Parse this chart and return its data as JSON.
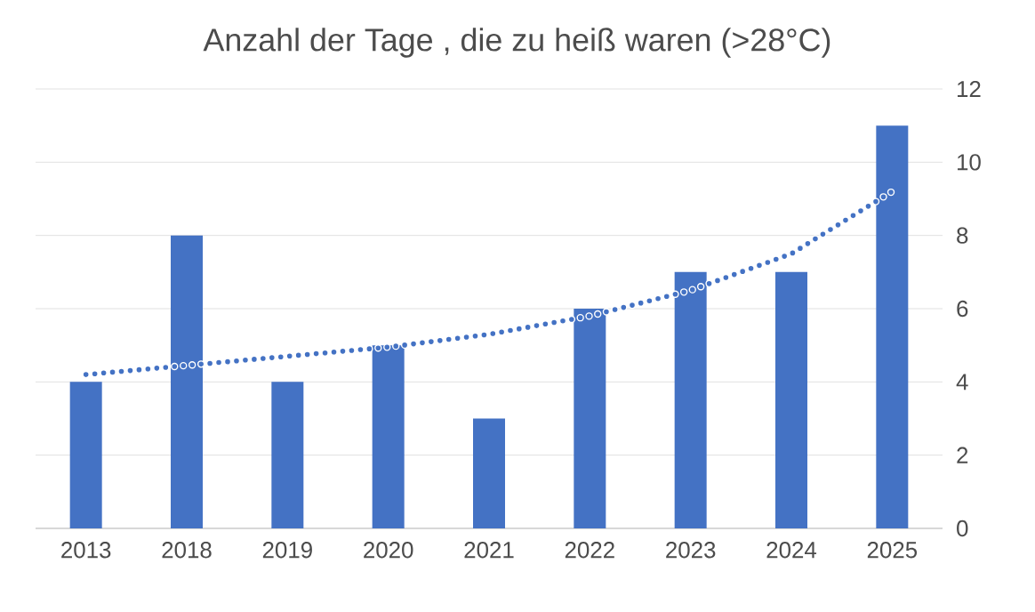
{
  "chart_data": {
    "type": "bar",
    "title": "Anzahl der Tage , die zu heiß waren (>28°C)",
    "categories": [
      "2013",
      "2018",
      "2019",
      "2020",
      "2021",
      "2022",
      "2023",
      "2024",
      "2025"
    ],
    "series": [
      {
        "color": "#4472c4",
        "values": [
          4,
          8,
          4,
          5,
          3,
          6,
          7,
          7,
          11
        ]
      },
      {
        "type": "line",
        "color": "#4472c4",
        "line_style": "dotted",
        "values": [
          4.2,
          4.45,
          4.7,
          4.95,
          5.3,
          5.8,
          6.5,
          7.5,
          9.2
        ]
      }
    ],
    "ylim": [
      0,
      12
    ],
    "yticks": [
      0,
      2,
      4,
      6,
      8,
      10,
      12
    ],
    "grid": "y"
  }
}
